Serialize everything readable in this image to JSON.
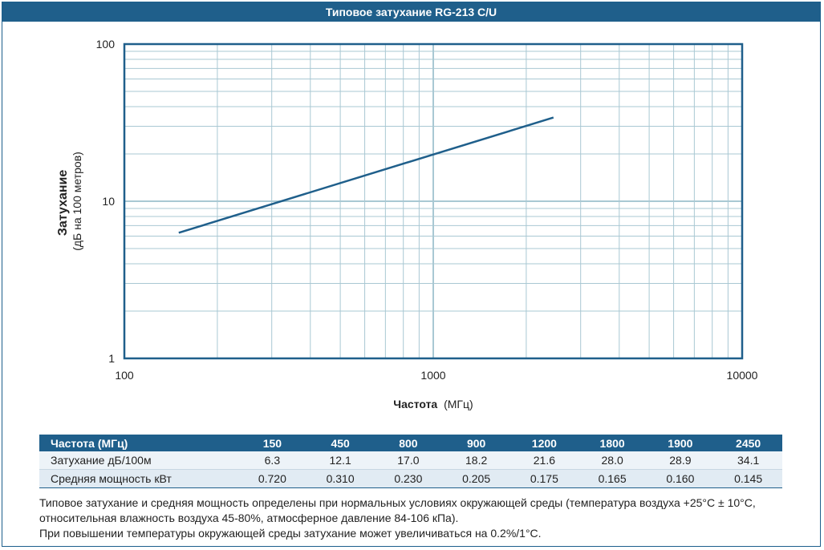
{
  "header": {
    "title": "Типовое затухание RG-213 C/U"
  },
  "chart_data": {
    "type": "line",
    "title": "Типовое затухание RG-213 C/U",
    "xlabel_bold": "Частота",
    "xlabel_unit": "(МГц)",
    "ylabel_bold": "Затухание",
    "ylabel_unit": "(дБ на 100 метров)",
    "x_scale": "log",
    "y_scale": "log",
    "xlim": [
      100,
      10000
    ],
    "ylim": [
      1,
      100
    ],
    "x_ticks": [
      100,
      1000,
      10000
    ],
    "y_ticks": [
      1,
      10,
      100
    ],
    "grid": true,
    "line_color": "#1f5f8b",
    "grid_color": "#a9c8d3",
    "series": [
      {
        "x": [
          150,
          2450
        ],
        "y": [
          6.3,
          34.1
        ]
      }
    ]
  },
  "table": {
    "header_label": "Частота (МГц)",
    "frequencies": [
      "150",
      "450",
      "800",
      "900",
      "1200",
      "1800",
      "1900",
      "2450"
    ],
    "rows": [
      {
        "label": "Затухание дБ/100м",
        "values": [
          "6.3",
          "12.1",
          "17.0",
          "18.2",
          "21.6",
          "28.0",
          "28.9",
          "34.1"
        ]
      },
      {
        "label": "Средняя мощность кВт",
        "values": [
          "0.720",
          "0.310",
          "0.230",
          "0.205",
          "0.175",
          "0.165",
          "0.160",
          "0.145"
        ]
      }
    ]
  },
  "notes": {
    "line1": "Типовое затухание и средняя мощность определены при нормальных условиях окружающей среды (температура воздуха +25°C ± 10°C, относительная влажность воздуха 45-80%, атмосферное давление 84-106 кПа).",
    "line2": "При повышении температуры окружающей среды затухание может увеличиваться на 0.2%/1°C."
  }
}
